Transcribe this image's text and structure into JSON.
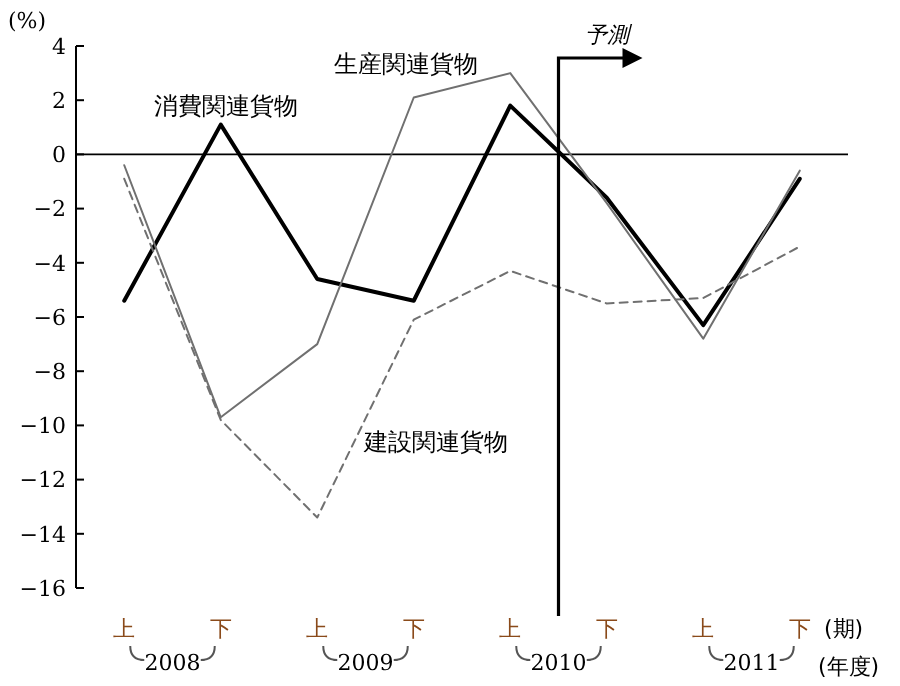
{
  "chart_data": {
    "type": "line",
    "ylabel": "(%)",
    "categories": [
      "上",
      "下",
      "上",
      "下",
      "上",
      "下",
      "上",
      "下"
    ],
    "series": [
      {
        "name": "消費関連貨物",
        "color": "#000000",
        "line_style": "solid",
        "values": [
          -5.4,
          1.1,
          -4.6,
          -5.4,
          1.8,
          -1.6,
          -6.3,
          -0.9
        ]
      },
      {
        "name": "生産関連貨物",
        "color": "#707070",
        "line_style": "solid",
        "values": [
          -0.4,
          -9.7,
          -7.0,
          2.1,
          3.0,
          -1.8,
          -6.8,
          -0.6
        ]
      },
      {
        "name": "建設関連貨物",
        "color": "#707070",
        "line_style": "dashed",
        "values": [
          -0.9,
          -9.8,
          -13.4,
          -6.1,
          -4.3,
          -5.5,
          -5.3,
          -3.4
        ]
      }
    ],
    "ylim": [
      -16,
      4
    ],
    "yticks": [
      -16,
      -14,
      -12,
      -10,
      -8,
      -6,
      -4,
      -2,
      0,
      2,
      4
    ],
    "ref_lines": [
      {
        "axis": "y",
        "value": 0,
        "color": "#000000"
      }
    ],
    "annotations": [
      "2008",
      "2009",
      "2010",
      "2011",
      "(期)",
      "(年度)",
      "予測"
    ],
    "grid": false,
    "marker": "none"
  }
}
